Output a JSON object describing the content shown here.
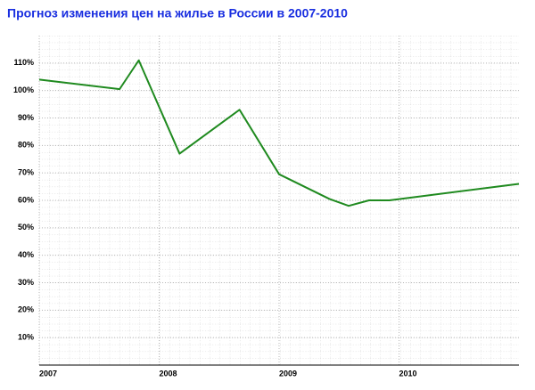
{
  "chart_data": {
    "type": "line",
    "title": "Прогноз изменения цен на жилье в России в 2007-2010",
    "x": [
      2007,
      2007.67,
      2007.83,
      2008.17,
      2008.67,
      2009,
      2009.42,
      2009.58,
      2009.75,
      2009.92,
      2011
    ],
    "series": [
      {
        "name": null,
        "color": "#1f8a1f",
        "values": [
          104,
          100.5,
          111,
          77,
          93,
          69.5,
          60.5,
          58,
          60,
          60,
          66
        ]
      }
    ],
    "xlim": [
      2007,
      2011
    ],
    "xticks": [
      2007,
      2008,
      2009,
      2010
    ],
    "ylim": [
      0,
      120
    ],
    "yticks": [
      {
        "value": 10,
        "label": "10%"
      },
      {
        "value": 20,
        "label": "20%"
      },
      {
        "value": 30,
        "label": "30%"
      },
      {
        "value": 40,
        "label": "40%"
      },
      {
        "value": 50,
        "label": "50%"
      },
      {
        "value": 60,
        "label": "60%"
      },
      {
        "value": 70,
        "label": "70%"
      },
      {
        "value": 80,
        "label": "80%"
      },
      {
        "value": 90,
        "label": "90%"
      },
      {
        "value": 100,
        "label": "100%"
      },
      {
        "value": 110,
        "label": "110%"
      }
    ],
    "grid": true
  }
}
